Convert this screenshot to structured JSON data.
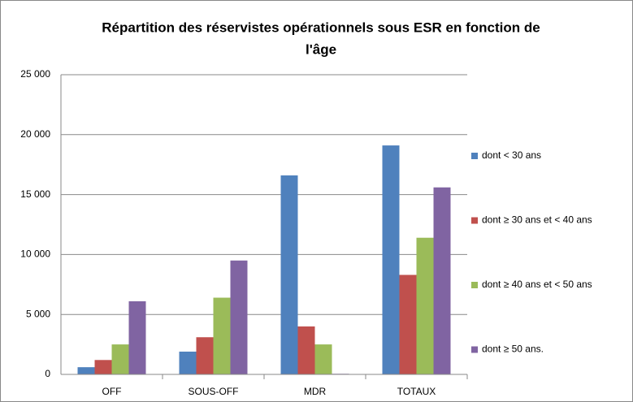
{
  "chart_data": {
    "type": "bar",
    "title": [
      "Répartition des réservistes opérationnels sous ESR  en fonction de",
      "l'âge"
    ],
    "categories": [
      "OFF",
      "SOUS-OFF",
      "MDR",
      "TOTAUX"
    ],
    "series": [
      {
        "name": "dont < 30 ans",
        "color": "#4f81bd",
        "values": [
          600,
          1900,
          16600,
          19100
        ]
      },
      {
        "name": "dont ≥ 30 ans et < 40 ans",
        "color": "#c0504d",
        "values": [
          1200,
          3100,
          4000,
          8300
        ]
      },
      {
        "name": "dont ≥ 40 ans et < 50 ans",
        "color": "#9bbb59",
        "values": [
          2500,
          6400,
          2500,
          11400
        ]
      },
      {
        "name": "dont ≥ 50 ans.",
        "color": "#8064a2",
        "values": [
          6100,
          9500,
          50,
          15600
        ]
      }
    ],
    "ylim": [
      0,
      25000
    ],
    "yticks": [
      {
        "value": 0,
        "label": "0"
      },
      {
        "value": 5000,
        "label": "5 000"
      },
      {
        "value": 10000,
        "label": "10 000"
      },
      {
        "value": 15000,
        "label": "15 000"
      },
      {
        "value": 20000,
        "label": "20 000"
      },
      {
        "value": 25000,
        "label": "25 000"
      }
    ],
    "grid": true,
    "legend": "right"
  }
}
